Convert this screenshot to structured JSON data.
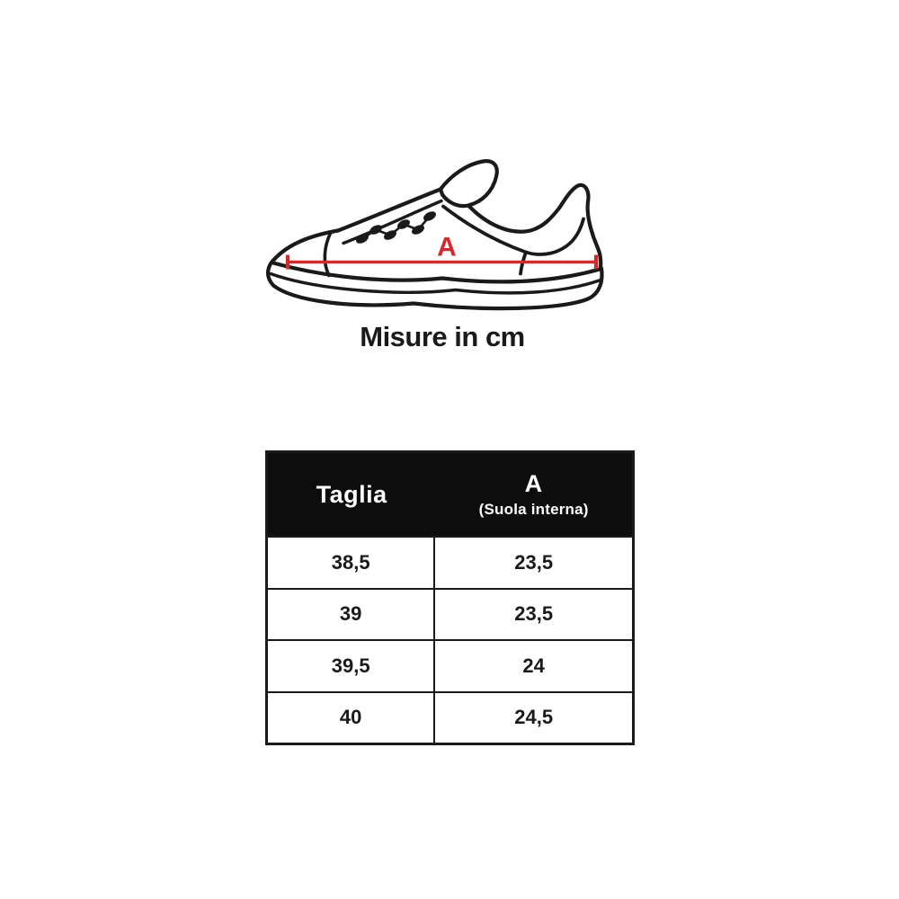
{
  "colors": {
    "background": "#ffffff",
    "ink": "#1a1a1a",
    "accent": "#d22b2b",
    "header_bg": "#0d0d0d",
    "header_text": "#ffffff"
  },
  "diagram": {
    "measure_label": "A",
    "caption": "Misure in cm"
  },
  "table": {
    "columns": {
      "size": "Taglia",
      "measure": "A",
      "measure_sub": "(Suola interna)"
    },
    "rows": [
      {
        "size": "38,5",
        "measure": "23,5"
      },
      {
        "size": "39",
        "measure": "23,5"
      },
      {
        "size": "39,5",
        "measure": "24"
      },
      {
        "size": "40",
        "measure": "24,5"
      }
    ]
  }
}
